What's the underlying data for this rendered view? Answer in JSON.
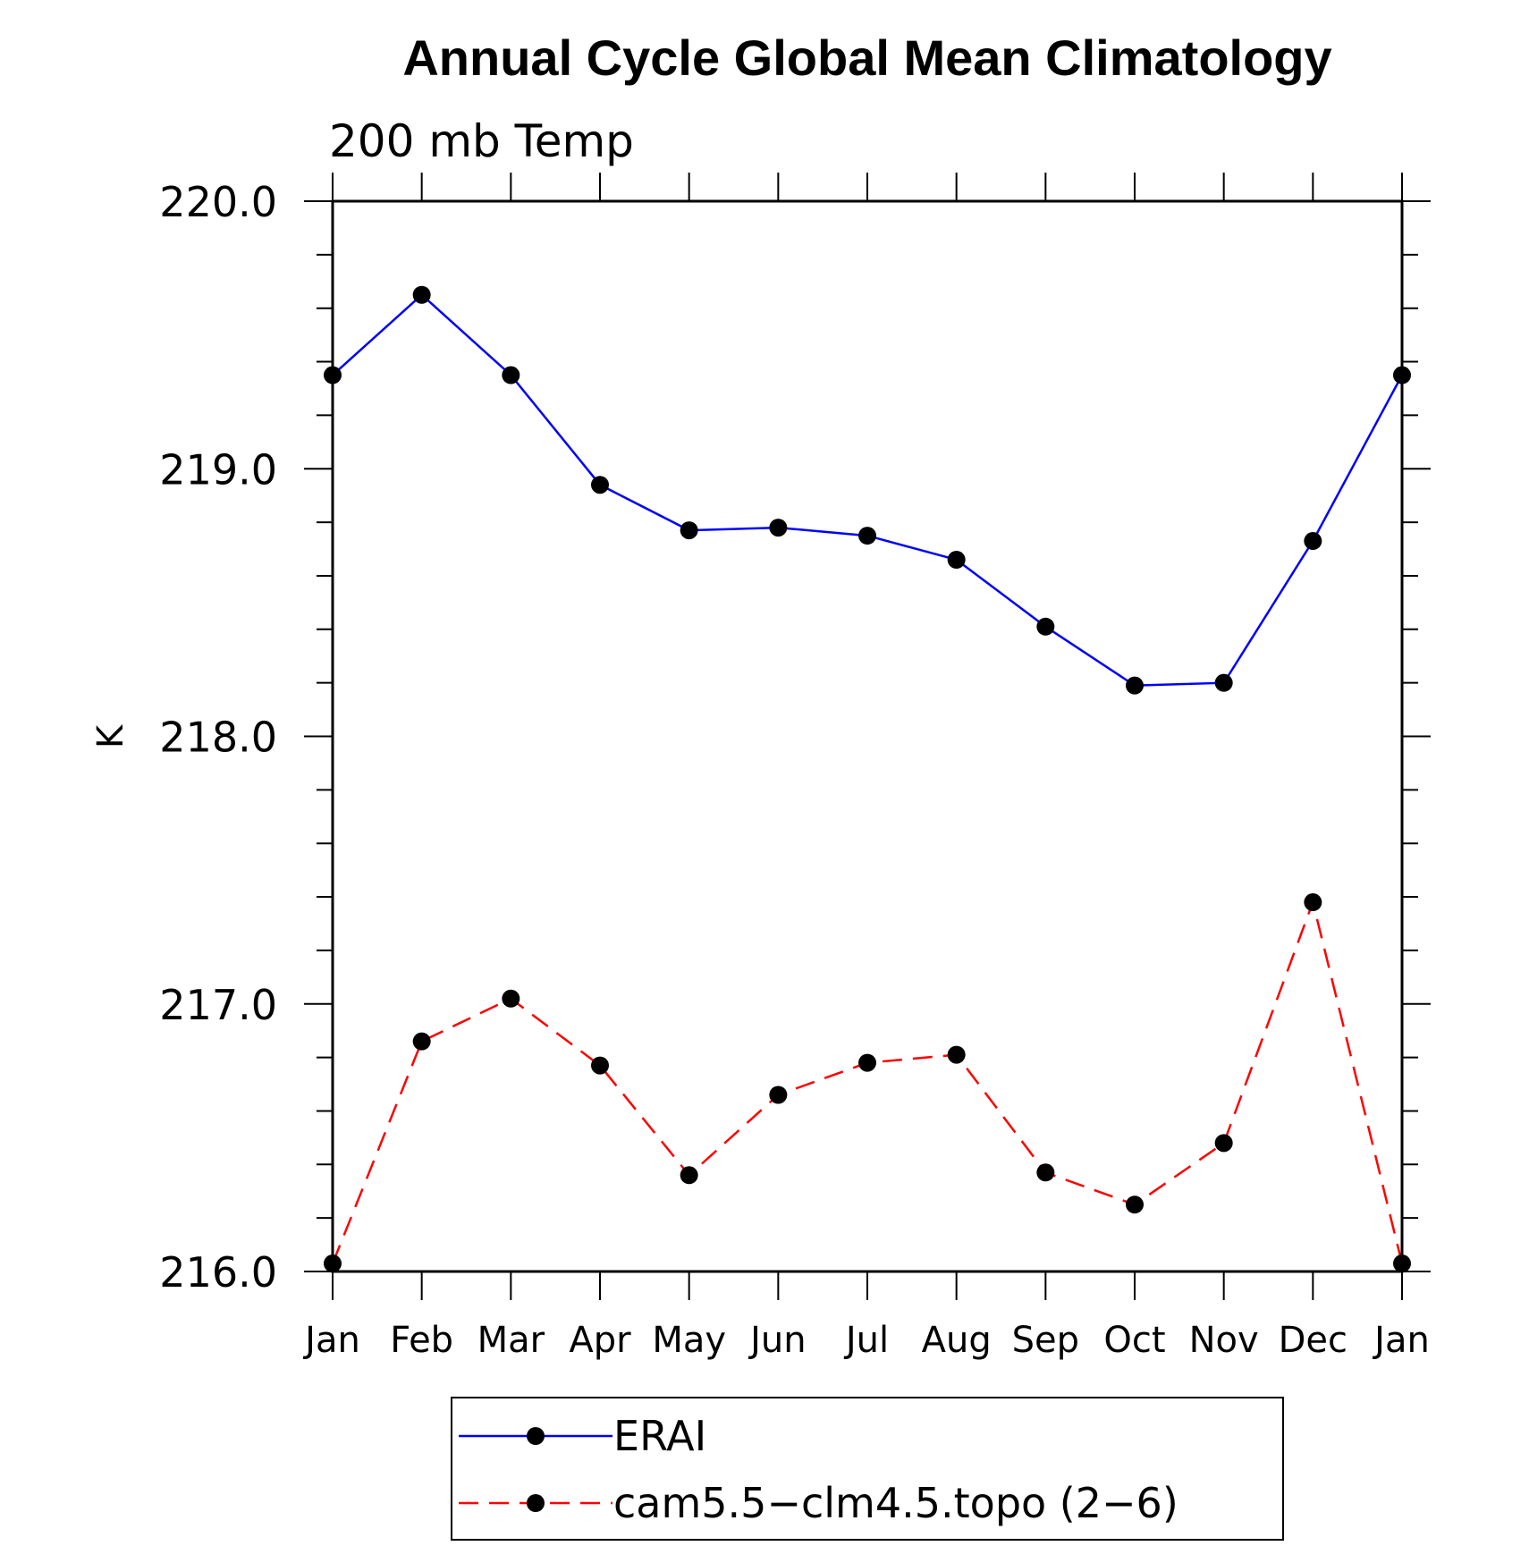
{
  "chart_data": {
    "type": "line",
    "title": "Annual Cycle Global Mean Climatology",
    "subtitle": "200 mb Temp",
    "xlabel": "",
    "ylabel": "K",
    "categories": [
      "Jan",
      "Feb",
      "Mar",
      "Apr",
      "May",
      "Jun",
      "Jul",
      "Aug",
      "Sep",
      "Oct",
      "Nov",
      "Dec",
      "Jan"
    ],
    "ylim": [
      216.0,
      220.0
    ],
    "yticks": [
      "216.0",
      "217.0",
      "218.0",
      "219.0",
      "220.0"
    ],
    "ytick_values": [
      216.0,
      217.0,
      218.0,
      219.0,
      220.0
    ],
    "legend_position": "bottom",
    "series": [
      {
        "name": "ERAI",
        "color": "#0000ff",
        "line_style": "solid",
        "marker": "filled-circle",
        "values": [
          219.35,
          219.65,
          219.35,
          218.94,
          218.77,
          218.78,
          218.75,
          218.66,
          218.41,
          218.19,
          218.2,
          218.73,
          219.35
        ]
      },
      {
        "name": "cam5.5−clm4.5.topo (2−6)",
        "color": "#ff0000",
        "line_style": "dashed",
        "marker": "filled-circle",
        "values": [
          216.03,
          216.86,
          217.02,
          216.77,
          216.36,
          216.66,
          216.78,
          216.81,
          216.37,
          216.25,
          216.48,
          217.38,
          216.03
        ]
      }
    ]
  }
}
